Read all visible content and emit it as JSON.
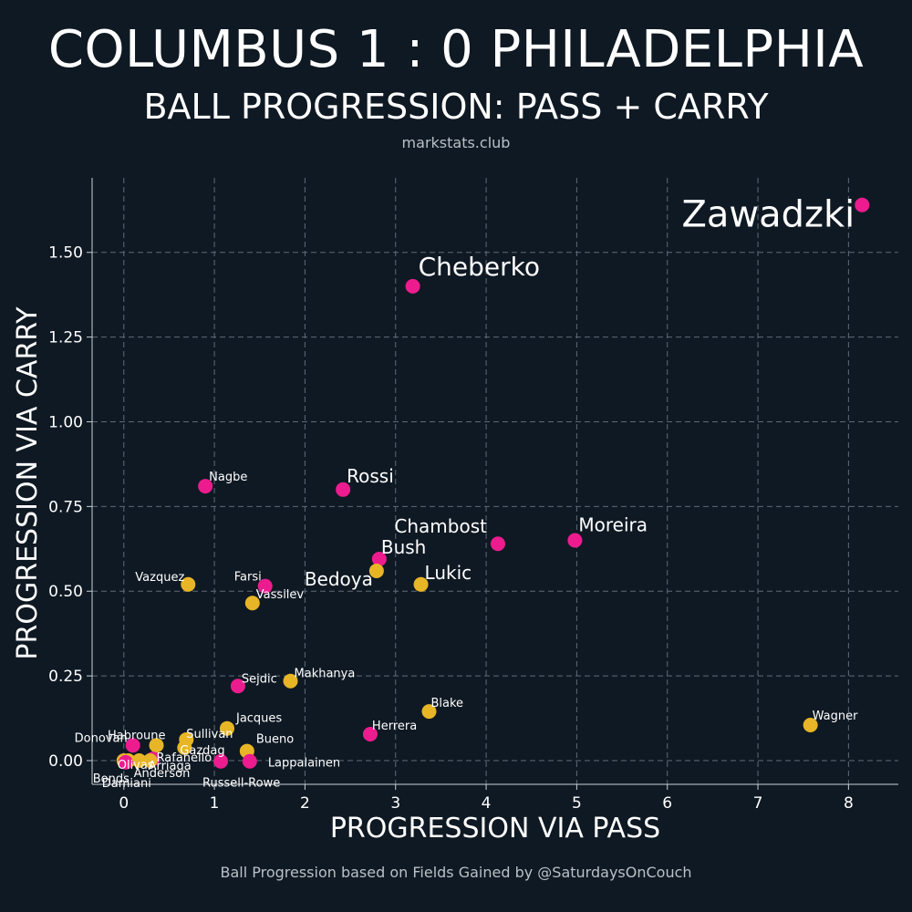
{
  "header": {
    "title": "COLUMBUS 1 : 0 PHILADELPHIA",
    "subtitle": "BALL PROGRESSION: PASS + CARRY",
    "site": "markstats.club"
  },
  "footer": {
    "caption": "Ball Progression based on Fields Gained by @SaturdaysOnCouch"
  },
  "colors": {
    "background": "#0f1923",
    "columbus": "#ec1c8f",
    "philadelphia": "#e8b527"
  },
  "chart_data": {
    "type": "scatter",
    "xlabel": "PROGRESSION VIA PASS",
    "ylabel": "PROGRESSION VIA CARRY",
    "xlim": [
      -0.35,
      8.55
    ],
    "ylim": [
      -0.07,
      1.72
    ],
    "xticks": [
      0,
      1,
      2,
      3,
      4,
      5,
      6,
      7,
      8
    ],
    "yticks": [
      0.0,
      0.25,
      0.5,
      0.75,
      1.0,
      1.25,
      1.5
    ],
    "ytick_labels": [
      "0.00",
      "0.25",
      "0.50",
      "0.75",
      "1.00",
      "1.25",
      "1.50"
    ],
    "grid": true,
    "points": [
      {
        "label": "Zawadzki",
        "x": 8.15,
        "y": 1.64,
        "team": "columbus",
        "size": "xl"
      },
      {
        "label": "Cheberko",
        "x": 3.19,
        "y": 1.4,
        "team": "columbus",
        "size": "l"
      },
      {
        "label": "Nagbe",
        "x": 0.9,
        "y": 0.81,
        "team": "columbus",
        "size": "s"
      },
      {
        "label": "Rossi",
        "x": 2.42,
        "y": 0.8,
        "team": "columbus",
        "size": "m"
      },
      {
        "label": "Chambost",
        "x": 4.13,
        "y": 0.64,
        "team": "columbus",
        "size": "m"
      },
      {
        "label": "Moreira",
        "x": 4.98,
        "y": 0.65,
        "team": "columbus",
        "size": "m"
      },
      {
        "label": "Bush",
        "x": 2.82,
        "y": 0.595,
        "team": "columbus",
        "size": "m"
      },
      {
        "label": "Bedoya",
        "x": 2.79,
        "y": 0.56,
        "team": "philadelphia",
        "size": "m"
      },
      {
        "label": "Lukic",
        "x": 3.28,
        "y": 0.52,
        "team": "philadelphia",
        "size": "m"
      },
      {
        "label": "Vazquez",
        "x": 0.71,
        "y": 0.52,
        "team": "philadelphia",
        "size": "s"
      },
      {
        "label": "Farsi",
        "x": 1.56,
        "y": 0.515,
        "team": "columbus",
        "size": "s"
      },
      {
        "label": "Vassilev",
        "x": 1.42,
        "y": 0.465,
        "team": "philadelphia",
        "size": "s"
      },
      {
        "label": "Sejdic",
        "x": 1.26,
        "y": 0.22,
        "team": "columbus",
        "size": "s"
      },
      {
        "label": "Makhanya",
        "x": 1.84,
        "y": 0.235,
        "team": "philadelphia",
        "size": "s"
      },
      {
        "label": "Blake",
        "x": 3.37,
        "y": 0.145,
        "team": "philadelphia",
        "size": "s"
      },
      {
        "label": "Wagner",
        "x": 7.58,
        "y": 0.105,
        "team": "philadelphia",
        "size": "s"
      },
      {
        "label": "Herrera",
        "x": 2.72,
        "y": 0.078,
        "team": "columbus",
        "size": "s"
      },
      {
        "label": "Jacques",
        "x": 1.14,
        "y": 0.095,
        "team": "philadelphia",
        "size": "s"
      },
      {
        "label": "Sullivan",
        "x": 0.69,
        "y": 0.062,
        "team": "philadelphia",
        "size": "s"
      },
      {
        "label": "Bueno",
        "x": 1.36,
        "y": 0.028,
        "team": "philadelphia",
        "size": "s"
      },
      {
        "label": "Donovan",
        "x": 0.1,
        "y": 0.045,
        "team": "columbus",
        "size": "s"
      },
      {
        "label": "Habroune",
        "x": 0.36,
        "y": 0.045,
        "team": "philadelphia",
        "size": "s"
      },
      {
        "label": "Gazdag",
        "x": 0.67,
        "y": 0.038,
        "team": "philadelphia",
        "size": "s"
      },
      {
        "label": "Rafanello",
        "x": 0.32,
        "y": 0.005,
        "team": "columbus",
        "size": "s"
      },
      {
        "label": "Olivas",
        "x": 0.05,
        "y": 0.0,
        "team": "philadelphia",
        "size": "s"
      },
      {
        "label": "Anderson",
        "x": 0.17,
        "y": 0.0,
        "team": "philadelphia",
        "size": "s"
      },
      {
        "label": "Arriaga",
        "x": 0.29,
        "y": 0.0,
        "team": "philadelphia",
        "size": "s"
      },
      {
        "label": "Bonds",
        "x": 0.0,
        "y": 0.0,
        "team": "philadelphia",
        "size": "s"
      },
      {
        "label": "Damiani",
        "x": 0.02,
        "y": -0.005,
        "team": "columbus",
        "size": "s"
      },
      {
        "label": "Russell-Rowe",
        "x": 1.07,
        "y": -0.002,
        "team": "columbus",
        "size": "s"
      },
      {
        "label": "Lappalainen",
        "x": 1.39,
        "y": -0.002,
        "team": "columbus",
        "size": "s"
      }
    ]
  }
}
